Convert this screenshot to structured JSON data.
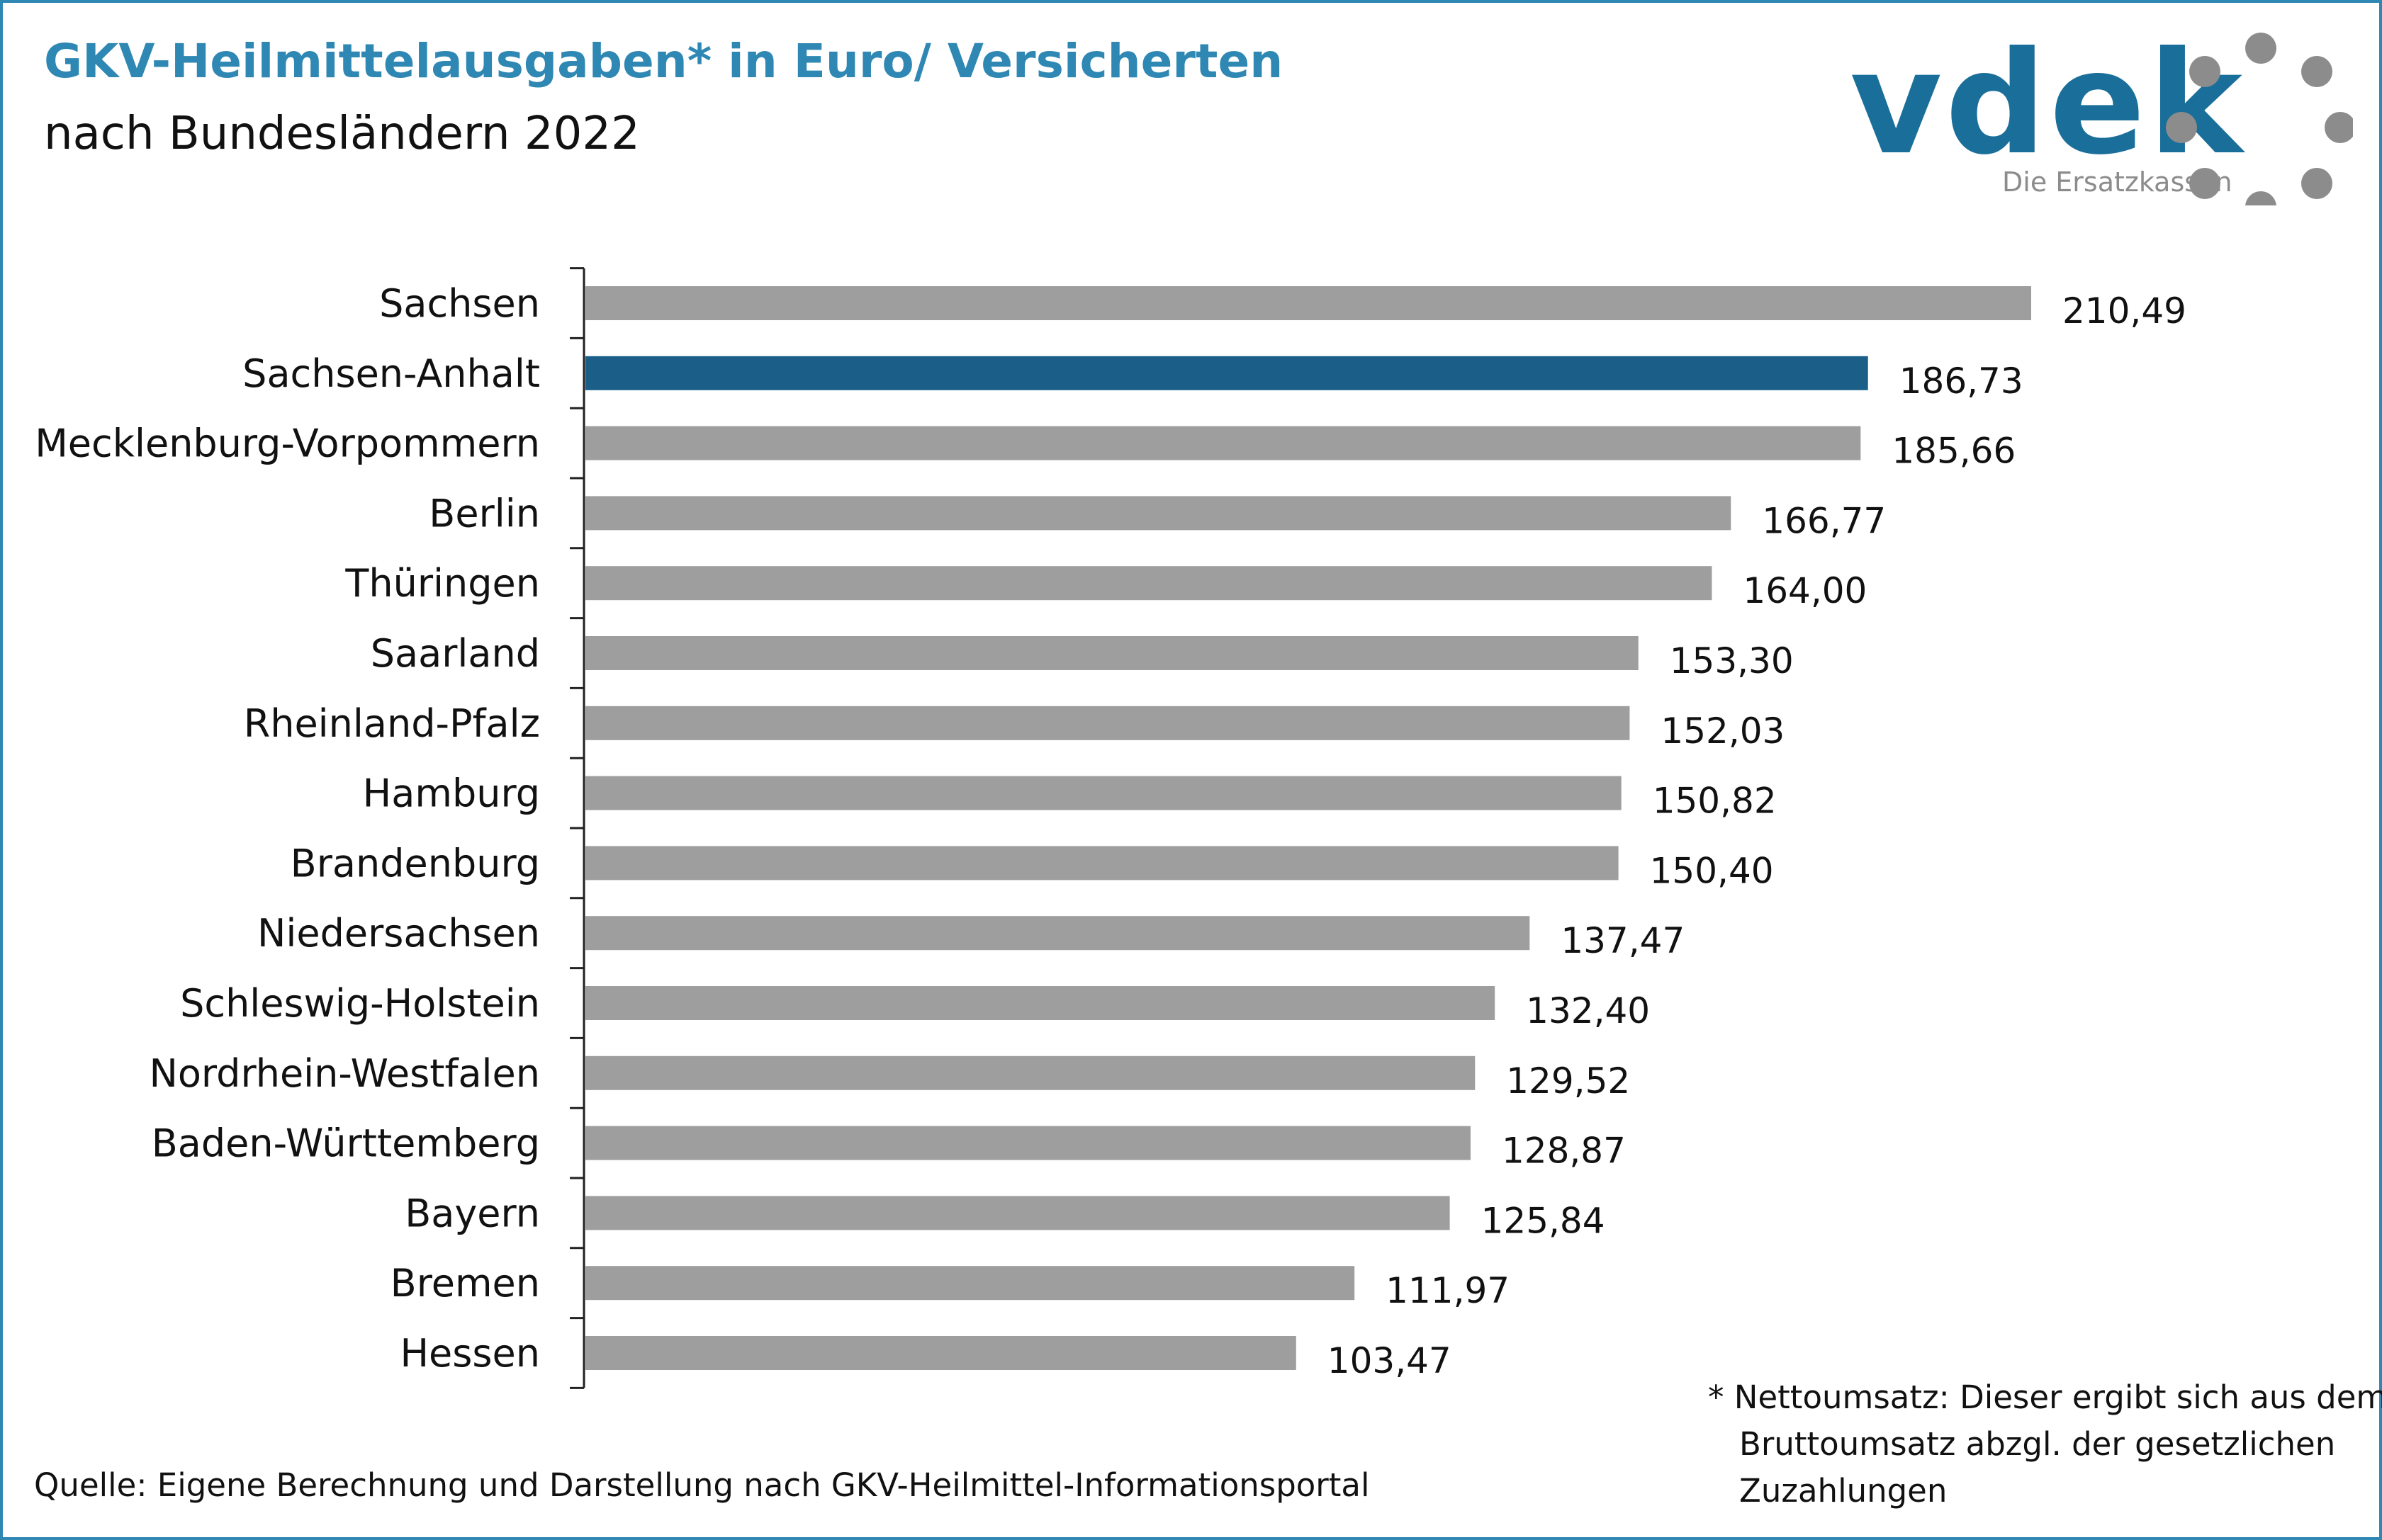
{
  "header": {
    "title": "GKV-Heilmittelausgaben* in Euro/ Versicherten",
    "subtitle": "nach Bundesländern 2022"
  },
  "logo": {
    "text": "vdek",
    "tagline": "Die Ersatzkassen",
    "color": "#1a6f9a",
    "ring_color": "#8c8c8c"
  },
  "footnote": {
    "lines": [
      "* Nettoumsatz: Dieser ergibt sich aus dem",
      "Bruttoumsatz abzgl. der gesetzlichen",
      "Zuzahlungen"
    ]
  },
  "source": "Quelle: Eigene Berechnung und Darstellung nach GKV-Heilmittel-Informationsportal",
  "chart_data": {
    "type": "bar",
    "orientation": "horizontal",
    "categories": [
      "Sachsen",
      "Sachsen-Anhalt",
      "Mecklenburg-Vorpommern",
      "Berlin",
      "Thüringen",
      "Saarland",
      "Rheinland-Pfalz",
      "Hamburg",
      "Brandenburg",
      "Niedersachsen",
      "Schleswig-Holstein",
      "Nordrhein-Westfalen",
      "Baden-Württemberg",
      "Bayern",
      "Bremen",
      "Hessen"
    ],
    "values": [
      210.49,
      186.73,
      185.66,
      166.77,
      164.0,
      153.3,
      152.03,
      150.82,
      150.4,
      137.47,
      132.4,
      129.52,
      128.87,
      125.84,
      111.97,
      103.47
    ],
    "value_labels": [
      "210,49",
      "186,73",
      "185,66",
      "166,77",
      "164,00",
      "153,30",
      "152,03",
      "150,82",
      "150,40",
      "137,47",
      "132,40",
      "129,52",
      "128,87",
      "125,84",
      "111,97",
      "103,47"
    ],
    "highlight": "Sachsen-Anhalt",
    "colors": {
      "default": "#9e9e9e",
      "highlight": "#1b5f88"
    },
    "xlim": [
      0,
      210.49
    ],
    "grid": false,
    "legend": "none"
  }
}
